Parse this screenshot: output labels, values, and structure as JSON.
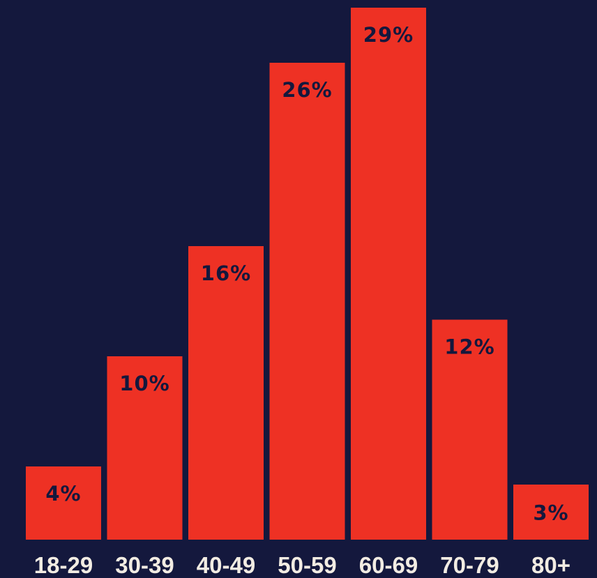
{
  "colors": {
    "background": "#14183d",
    "bar": "#ee3124",
    "value_label": "#14183d",
    "category_label": "#f2ece3"
  },
  "chart_data": {
    "type": "bar",
    "categories": [
      "18-29",
      "30-39",
      "40-49",
      "50-59",
      "60-69",
      "70-79",
      "80+"
    ],
    "values": [
      4,
      10,
      16,
      26,
      29,
      12,
      3
    ],
    "value_labels": [
      "4%",
      "10%",
      "16%",
      "26%",
      "29%",
      "12%",
      "3%"
    ],
    "unit": "%",
    "title": "",
    "xlabel": "",
    "ylabel": "",
    "ylim": [
      0,
      29
    ],
    "grid": false,
    "legend": "none"
  }
}
